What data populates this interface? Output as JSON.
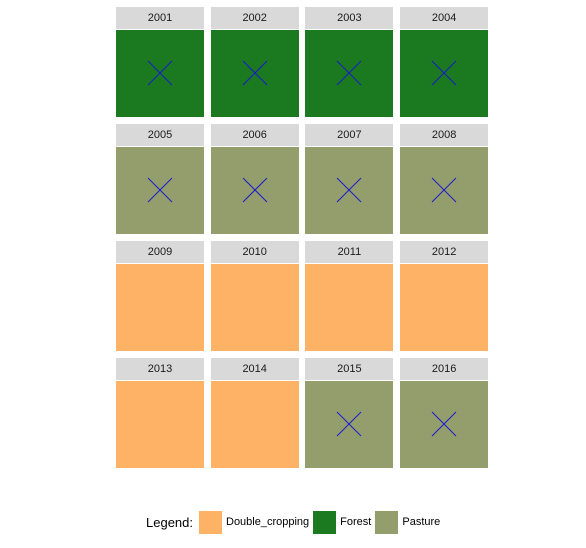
{
  "chart_data": {
    "type": "heatmap",
    "facets": [
      {
        "year": "2001",
        "class": "Forest",
        "marked": true
      },
      {
        "year": "2002",
        "class": "Forest",
        "marked": true
      },
      {
        "year": "2003",
        "class": "Forest",
        "marked": true
      },
      {
        "year": "2004",
        "class": "Forest",
        "marked": true
      },
      {
        "year": "2005",
        "class": "Pasture",
        "marked": true
      },
      {
        "year": "2006",
        "class": "Pasture",
        "marked": true
      },
      {
        "year": "2007",
        "class": "Pasture",
        "marked": true
      },
      {
        "year": "2008",
        "class": "Pasture",
        "marked": true
      },
      {
        "year": "2009",
        "class": "Double_cropping",
        "marked": false
      },
      {
        "year": "2010",
        "class": "Double_cropping",
        "marked": false
      },
      {
        "year": "2011",
        "class": "Double_cropping",
        "marked": false
      },
      {
        "year": "2012",
        "class": "Double_cropping",
        "marked": false
      },
      {
        "year": "2013",
        "class": "Double_cropping",
        "marked": false
      },
      {
        "year": "2014",
        "class": "Double_cropping",
        "marked": false
      },
      {
        "year": "2015",
        "class": "Pasture",
        "marked": true
      },
      {
        "year": "2016",
        "class": "Pasture",
        "marked": true
      }
    ],
    "legend": {
      "title": "Legend:",
      "position": "bottom",
      "entries": [
        {
          "label": "Double_cropping",
          "color": "#fdb266"
        },
        {
          "label": "Forest",
          "color": "#1b7a1f"
        },
        {
          "label": "Pasture",
          "color": "#949e6d"
        }
      ]
    },
    "marker_color": "#1a1acc",
    "strip_color": "#d9d9d9"
  }
}
